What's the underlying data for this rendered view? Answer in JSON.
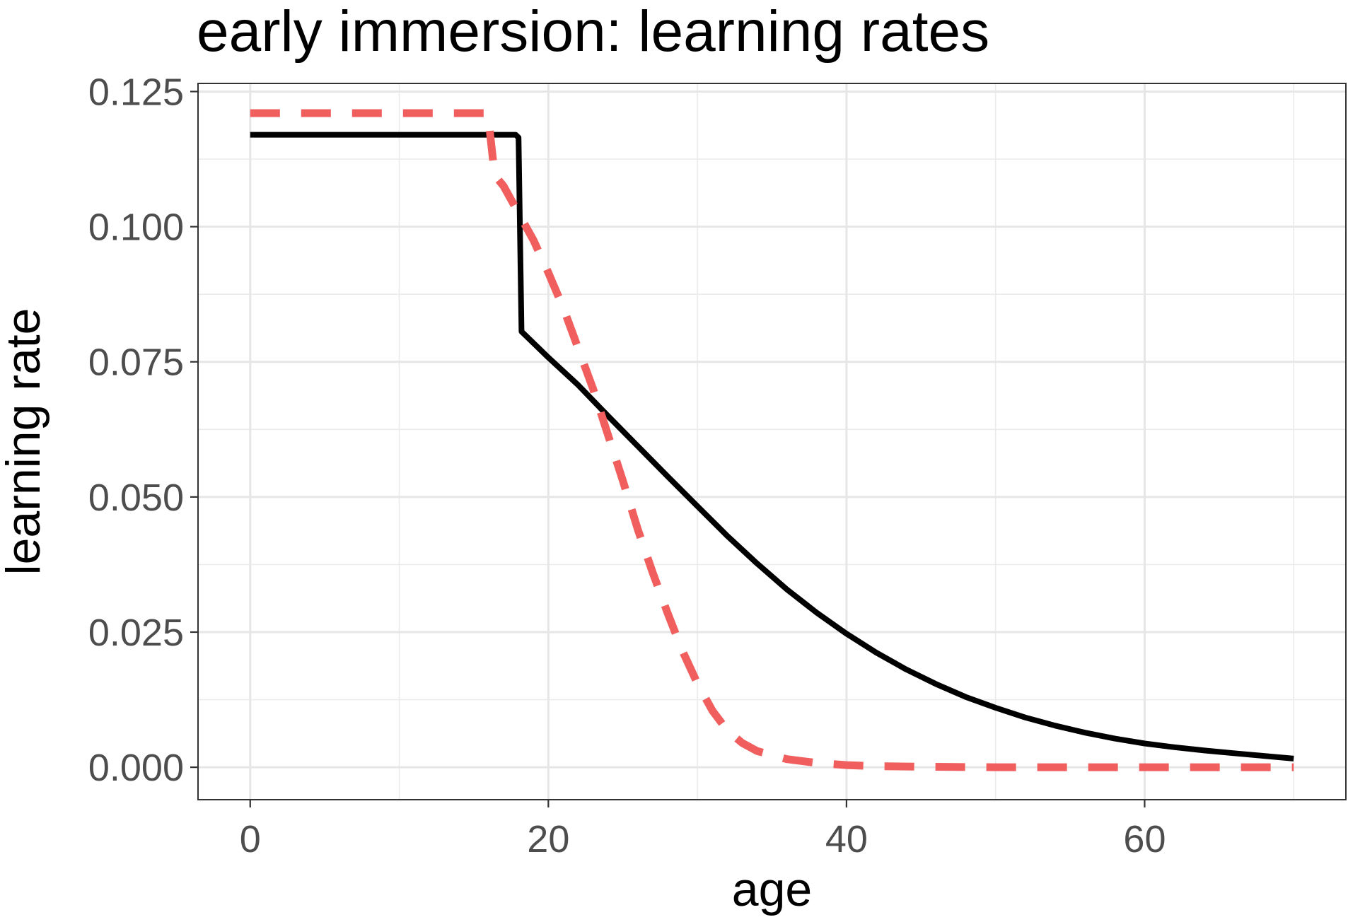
{
  "chart_data": {
    "type": "line",
    "title": "early immersion: learning rates",
    "xlabel": "age",
    "ylabel": "learning rate",
    "xlim": [
      -3.5,
      73.5
    ],
    "ylim": [
      -0.006,
      0.1265
    ],
    "x_ticks": [
      0,
      20,
      40,
      60
    ],
    "x_tick_labels": [
      "0",
      "20",
      "40",
      "60"
    ],
    "x_minor_ticks": [
      10,
      30,
      50,
      70
    ],
    "y_ticks": [
      0,
      0.025,
      0.05,
      0.075,
      0.1,
      0.125
    ],
    "y_tick_labels": [
      "0.000",
      "0.025",
      "0.050",
      "0.075",
      "0.100",
      "0.125"
    ],
    "y_minor_ticks": [
      0.0125,
      0.0375,
      0.0625,
      0.0875,
      0.1125
    ],
    "grid": true,
    "legend": "none",
    "series": [
      {
        "color": "#000000",
        "dash": "solid",
        "x": [
          0,
          17.8,
          18.0,
          18.2,
          20,
          22,
          24,
          26,
          28,
          30,
          32,
          34,
          36,
          38,
          40,
          42,
          44,
          46,
          48,
          50,
          52,
          54,
          56,
          58,
          60,
          62,
          64,
          66,
          68,
          70
        ],
        "y": [
          0.117,
          0.117,
          0.1165,
          0.0806,
          0.0758,
          0.0707,
          0.065,
          0.0594,
          0.0538,
          0.0483,
          0.0428,
          0.0377,
          0.0329,
          0.0286,
          0.0247,
          0.0212,
          0.0181,
          0.0154,
          0.013,
          0.011,
          0.0092,
          0.0077,
          0.0064,
          0.0053,
          0.0044,
          0.0037,
          0.0031,
          0.0026,
          0.0021,
          0.0016
        ]
      },
      {
        "color": "#f05f5d",
        "dash": "dashed",
        "x": [
          0,
          15.8,
          16.0,
          16.1,
          16.4,
          17,
          18,
          19,
          20,
          21,
          22,
          23,
          24,
          25,
          26,
          27,
          28,
          29,
          30,
          31,
          32,
          33,
          34,
          36,
          38,
          40,
          42,
          45,
          50,
          55,
          60,
          65,
          70
        ],
        "y": [
          0.121,
          0.121,
          0.1205,
          0.117,
          0.1095,
          0.1075,
          0.1025,
          0.0975,
          0.0915,
          0.085,
          0.0775,
          0.07,
          0.0615,
          0.053,
          0.044,
          0.036,
          0.0285,
          0.0215,
          0.0155,
          0.0105,
          0.0068,
          0.0045,
          0.003,
          0.0015,
          0.0008,
          0.0004,
          0.0002,
          0.0001,
          0.0,
          0.0,
          0.0,
          0.0,
          0.0
        ]
      }
    ]
  }
}
